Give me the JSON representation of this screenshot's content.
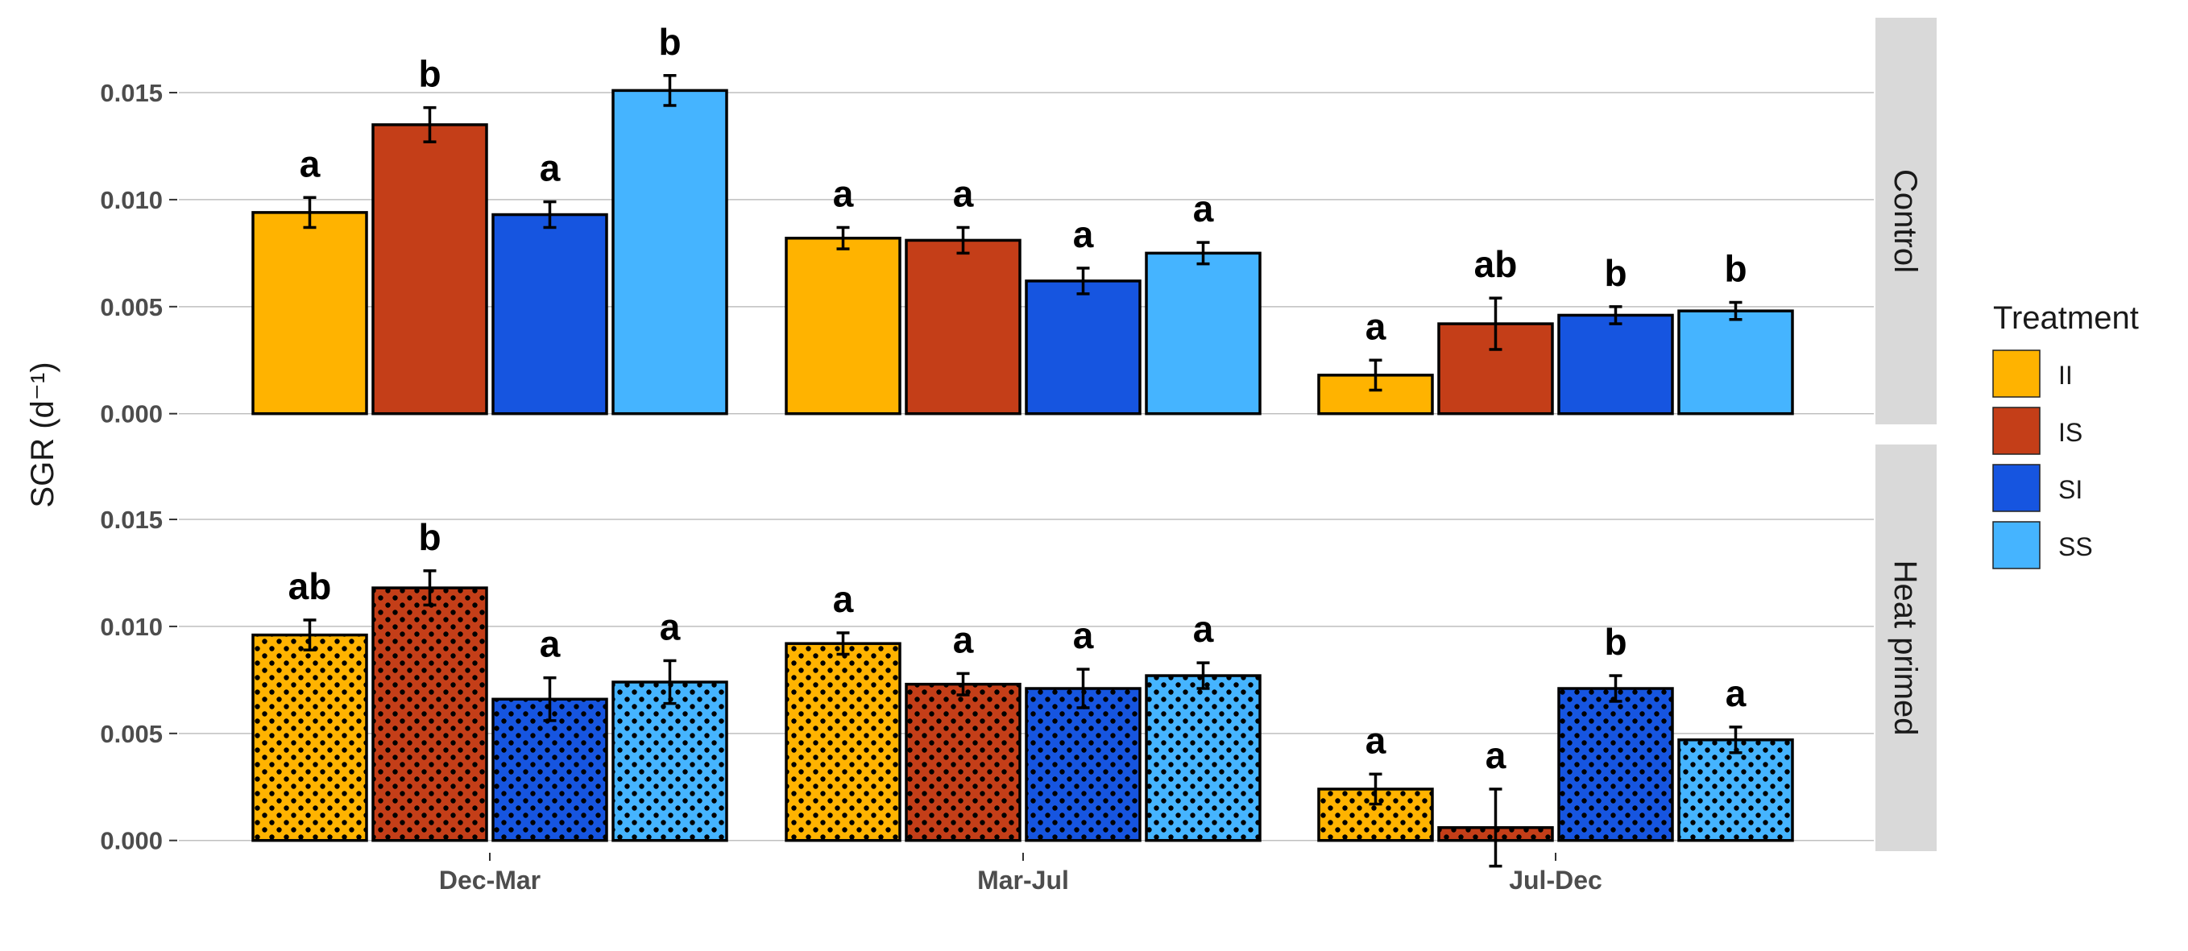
{
  "chart_data": {
    "type": "bar",
    "ylabel": "SGR (d⁻¹)",
    "xlabel": "",
    "categories": [
      "Dec-Mar",
      "Mar-Jul",
      "Jul-Dec"
    ],
    "ylim": [
      -0.0005,
      0.0185
    ],
    "yticks": [
      "0.000",
      "0.005",
      "0.010",
      "0.015"
    ],
    "ytick_values": [
      0,
      0.005,
      0.01,
      0.015
    ],
    "grid": true,
    "legend": {
      "title": "Treatment",
      "placement": "right",
      "entries": [
        "II",
        "IS",
        "SI",
        "SS"
      ]
    },
    "colors": {
      "II": "#FFB300",
      "IS": "#C43E18",
      "SI": "#1655E0",
      "SS": "#45B4FF"
    },
    "panels": [
      {
        "label": "Control",
        "pattern": "none",
        "series": [
          {
            "name": "II",
            "values": [
              0.0094,
              0.0082,
              0.0018
            ],
            "errors": [
              0.0007,
              0.0005,
              0.0007
            ],
            "letters": [
              "a",
              "a",
              "a"
            ]
          },
          {
            "name": "IS",
            "values": [
              0.0135,
              0.0081,
              0.0042
            ],
            "errors": [
              0.0008,
              0.0006,
              0.0012
            ],
            "letters": [
              "b",
              "a",
              "ab"
            ]
          },
          {
            "name": "SI",
            "values": [
              0.0093,
              0.0062,
              0.0046
            ],
            "errors": [
              0.0006,
              0.0006,
              0.0004
            ],
            "letters": [
              "a",
              "a",
              "b"
            ]
          },
          {
            "name": "SS",
            "values": [
              0.0151,
              0.0075,
              0.0048
            ],
            "errors": [
              0.0007,
              0.0005,
              0.0004
            ],
            "letters": [
              "b",
              "a",
              "b"
            ]
          }
        ]
      },
      {
        "label": "Heat primed",
        "pattern": "dots",
        "series": [
          {
            "name": "II",
            "values": [
              0.0096,
              0.0092,
              0.0024
            ],
            "errors": [
              0.0007,
              0.0005,
              0.0007
            ],
            "letters": [
              "ab",
              "a",
              "a"
            ]
          },
          {
            "name": "IS",
            "values": [
              0.0118,
              0.0073,
              0.0006
            ],
            "errors": [
              0.0008,
              0.0005,
              0.0018
            ],
            "letters": [
              "b",
              "a",
              "a"
            ]
          },
          {
            "name": "SI",
            "values": [
              0.0066,
              0.0071,
              0.0071
            ],
            "errors": [
              0.001,
              0.0009,
              0.0006
            ],
            "letters": [
              "a",
              "a",
              "b"
            ]
          },
          {
            "name": "SS",
            "values": [
              0.0074,
              0.0077,
              0.0047
            ],
            "errors": [
              0.001,
              0.0006,
              0.0006
            ],
            "letters": [
              "a",
              "a",
              "a"
            ]
          }
        ]
      }
    ]
  }
}
